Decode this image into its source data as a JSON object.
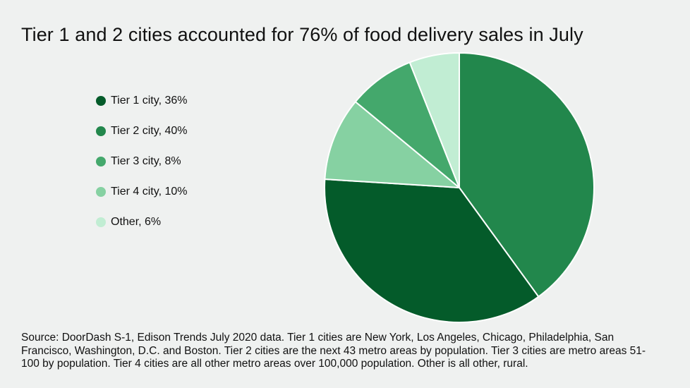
{
  "chart_data": {
    "type": "pie",
    "title": "Tier 1 and 2 cities accounted for 76% of food delivery sales in July",
    "legend_position": "left",
    "slices": [
      {
        "label": "Tier 1 city, 36%",
        "value": 36,
        "color": "#045b2a"
      },
      {
        "label": "Tier 2 city, 40%",
        "value": 40,
        "color": "#22874c"
      },
      {
        "label": "Tier 3 city, 8%",
        "value": 8,
        "color": "#44a86c"
      },
      {
        "label": "Tier 4 city, 10%",
        "value": 10,
        "color": "#86d1a2"
      },
      {
        "label": "Other, 6%",
        "value": 6,
        "color": "#c1edd3"
      }
    ],
    "source": "Source: DoorDash S-1, Edison Trends July 2020 data. Tier 1 cities are New York, Los Angeles, Chicago, Philadelphia, San Francisco, Washington, D.C. and Boston. Tier 2 cities are the next 43 metro areas by population. Tier 3 cities are metro areas 51-100 by population. Tier 4 cities are all other metro areas over 100,000 population. Other is all other, rural."
  }
}
